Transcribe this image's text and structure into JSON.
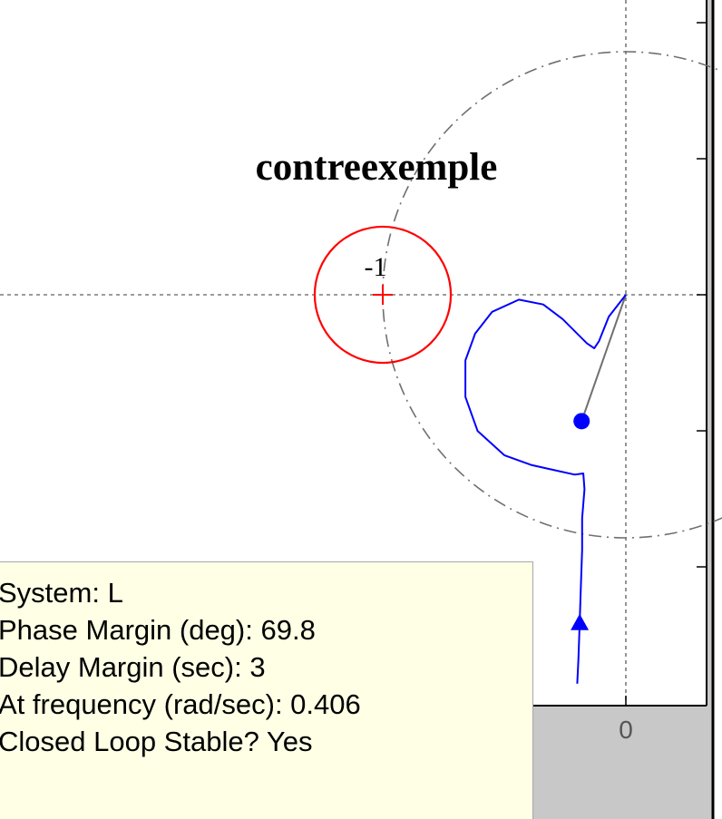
{
  "chart_data": {
    "type": "nyquist",
    "title": "contreexemple",
    "x_tick_labels": [
      "0"
    ],
    "grid": true,
    "critical_point": {
      "x": -1,
      "y": 0,
      "label": "-1"
    },
    "unit_circle": {
      "center": [
        0,
        0
      ],
      "radius": 1,
      "style": "dashed"
    },
    "margin_circle": {
      "center": [
        -1,
        0
      ],
      "radius": 0.28,
      "color": "#ff0000"
    },
    "series": [
      {
        "color": "#0000ff",
        "points": [
          [
            0,
            0
          ],
          [
            -0.07,
            -0.09
          ],
          [
            -0.11,
            -0.19
          ],
          [
            -0.13,
            -0.22
          ],
          [
            -0.16,
            -0.2
          ],
          [
            -0.26,
            -0.1
          ],
          [
            -0.34,
            -0.04
          ],
          [
            -0.44,
            -0.02
          ],
          [
            -0.55,
            -0.07
          ],
          [
            -0.62,
            -0.16
          ],
          [
            -0.66,
            -0.27
          ],
          [
            -0.66,
            -0.42
          ],
          [
            -0.61,
            -0.56
          ],
          [
            -0.5,
            -0.66
          ],
          [
            -0.39,
            -0.7
          ],
          [
            -0.3,
            -0.72
          ],
          [
            -0.21,
            -0.74
          ],
          [
            -0.175,
            -0.735
          ],
          [
            -0.17,
            -0.8
          ],
          [
            -0.18,
            -0.92
          ],
          [
            -0.18,
            -1.05
          ],
          [
            -0.185,
            -1.2
          ],
          [
            -0.19,
            -1.35
          ],
          [
            -0.195,
            -1.5
          ],
          [
            -0.2,
            -1.6
          ]
        ]
      }
    ],
    "margin_point": {
      "x": -0.182,
      "y": -0.52,
      "phase_margin_deg": 69.8
    },
    "margin_line": {
      "from": [
        0,
        0
      ],
      "to": [
        -0.182,
        -0.52
      ]
    }
  },
  "datatip": {
    "system": "System: L",
    "phase_margin": "Phase Margin (deg): 69.8",
    "delay_margin": "Delay Margin (sec): 3",
    "frequency": "At frequency (rad/sec): 0.406",
    "stability": "Closed Loop Stable? Yes"
  },
  "colors": {
    "curve": "#0000ff",
    "margin_circle": "#ff0000",
    "critical_marker": "#ff0000",
    "grid": "#7a7a7a",
    "unit_circle": "#707070",
    "axes_bg": "#ffffff",
    "figure_bg": "#c8c8c8",
    "datatip_bg": "#ffffe6"
  }
}
